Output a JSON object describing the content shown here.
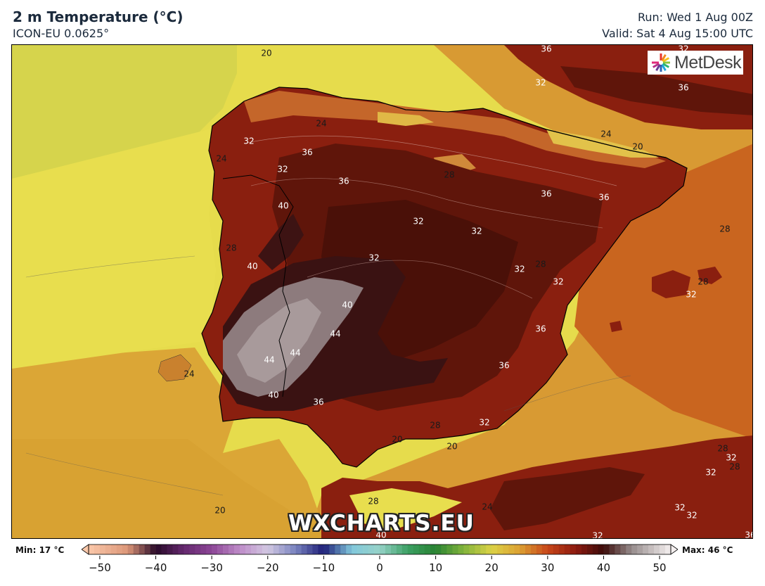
{
  "header": {
    "title": "2 m Temperature (°C)",
    "subtitle": "ICON-EU 0.0625°",
    "run": "Run: Wed 1 Aug 00Z",
    "valid": "Valid: Sat 4 Aug 15:00 UTC"
  },
  "logo": {
    "text": "MetDesk"
  },
  "watermark": "WXCHARTS.EU",
  "legend": {
    "min_label": "Min: 17 °C",
    "max_label": "Max: 46 °C",
    "ticks": [
      "−50",
      "−40",
      "−30",
      "−20",
      "−10",
      "0",
      "10",
      "20",
      "30",
      "40",
      "50"
    ]
  },
  "contour_labels": [
    {
      "text": "20",
      "color": "#1a1a1a"
    },
    {
      "text": "36",
      "color": "#ffffff"
    },
    {
      "text": "32",
      "color": "#ffffff"
    },
    {
      "text": "32",
      "color": "#ffffff"
    },
    {
      "text": "36",
      "color": "#ffffff"
    },
    {
      "text": "24",
      "color": "#1a1a1a"
    },
    {
      "text": "32",
      "color": "#ffffff"
    },
    {
      "text": "36",
      "color": "#ffffff"
    },
    {
      "text": "24",
      "color": "#1a1a1a"
    },
    {
      "text": "20",
      "color": "#1a1a1a"
    },
    {
      "text": "24",
      "color": "#1a1a1a"
    },
    {
      "text": "32",
      "color": "#ffffff"
    },
    {
      "text": "28",
      "color": "#1a1a1a"
    },
    {
      "text": "36",
      "color": "#ffffff"
    },
    {
      "text": "36",
      "color": "#ffffff"
    },
    {
      "text": "36",
      "color": "#ffffff"
    },
    {
      "text": "40",
      "color": "#ffffff"
    },
    {
      "text": "32",
      "color": "#ffffff"
    },
    {
      "text": "32",
      "color": "#ffffff"
    },
    {
      "text": "28",
      "color": "#1a1a1a"
    },
    {
      "text": "28",
      "color": "#1a1a1a"
    },
    {
      "text": "40",
      "color": "#ffffff"
    },
    {
      "text": "32",
      "color": "#ffffff"
    },
    {
      "text": "32",
      "color": "#ffffff"
    },
    {
      "text": "28",
      "color": "#1a1a1a"
    },
    {
      "text": "32",
      "color": "#ffffff"
    },
    {
      "text": "28",
      "color": "#1a1a1a"
    },
    {
      "text": "32",
      "color": "#ffffff"
    },
    {
      "text": "40",
      "color": "#ffffff"
    },
    {
      "text": "44",
      "color": "#ffffff"
    },
    {
      "text": "36",
      "color": "#ffffff"
    },
    {
      "text": "44",
      "color": "#ffffff"
    },
    {
      "text": "44",
      "color": "#ffffff"
    },
    {
      "text": "36",
      "color": "#ffffff"
    },
    {
      "text": "24",
      "color": "#1a1a1a"
    },
    {
      "text": "40",
      "color": "#ffffff"
    },
    {
      "text": "36",
      "color": "#ffffff"
    },
    {
      "text": "28",
      "color": "#1a1a1a"
    },
    {
      "text": "32",
      "color": "#ffffff"
    },
    {
      "text": "20",
      "color": "#1a1a1a"
    },
    {
      "text": "20",
      "color": "#1a1a1a"
    },
    {
      "text": "28",
      "color": "#1a1a1a"
    },
    {
      "text": "32",
      "color": "#ffffff"
    },
    {
      "text": "28",
      "color": "#1a1a1a"
    },
    {
      "text": "32",
      "color": "#ffffff"
    },
    {
      "text": "28",
      "color": "#1a1a1a"
    },
    {
      "text": "24",
      "color": "#1a1a1a"
    },
    {
      "text": "20",
      "color": "#1a1a1a"
    },
    {
      "text": "32",
      "color": "#ffffff"
    },
    {
      "text": "32",
      "color": "#ffffff"
    },
    {
      "text": "32",
      "color": "#ffffff"
    },
    {
      "text": "36",
      "color": "#ffffff"
    },
    {
      "text": "40",
      "color": "#ffffff"
    }
  ],
  "colors": {
    "sea_yellow": "#e8de4e",
    "sea_olive": "#d6d44c",
    "sea_orange": "#d9a035",
    "land_red": "#8a1f0f",
    "land_dark": "#5a1208",
    "land_hot": "#3b1010",
    "land_extreme": "#9a8a8c",
    "mountain_orange": "#c8702a"
  }
}
